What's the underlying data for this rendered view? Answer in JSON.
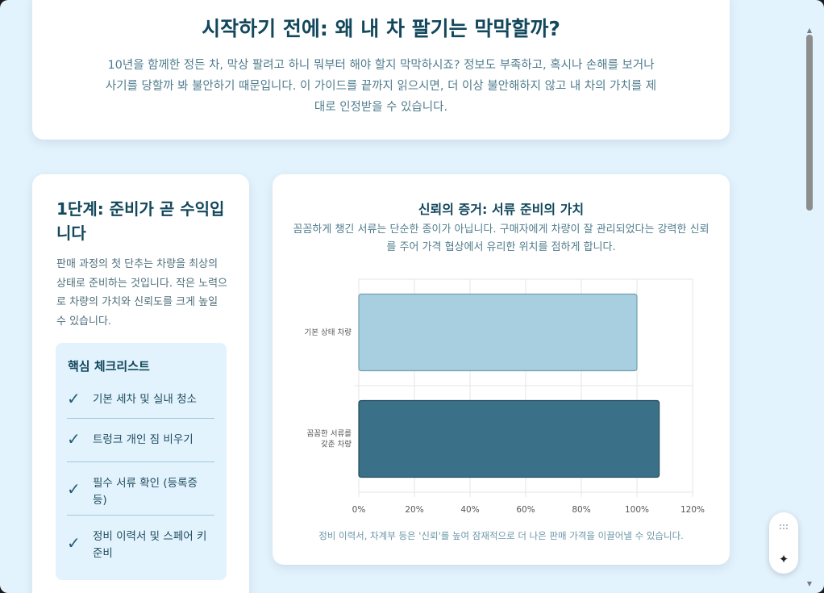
{
  "intro": {
    "title": "시작하기 전에: 왜 내 차 팔기는 막막할까?",
    "text": "10년을 함께한 정든 차, 막상 팔려고 하니 뭐부터 해야 할지 막막하시죠? 정보도 부족하고, 혹시나 손해를 보거나 사기를 당할까 봐 불안하기 때문입니다. 이 가이드를 끝까지 읽으시면, 더 이상 불안해하지 않고 내 차의 가치를 제대로 인정받을 수 있습니다."
  },
  "step1": {
    "title": "1단계: 준비가 곧 수익입니다",
    "text": "판매 과정의 첫 단추는 차량을 최상의 상태로 준비하는 것입니다. 작은 노력으로 차량의 가치와 신뢰도를 크게 높일 수 있습니다.",
    "checklist_title": "핵심 체크리스트",
    "check_mark": "✓",
    "checklist": [
      {
        "label": "기본 세차 및 실내 청소"
      },
      {
        "label": "트렁크 개인 짐 비우기"
      },
      {
        "label": "필수 서류 확인 (등록증 등)"
      },
      {
        "label": "정비 이력서 및 스페어 키 준비"
      }
    ]
  },
  "chart_section": {
    "title": "신뢰의 증거: 서류 준비의 가치",
    "subtitle": "꼼꼼하게 챙긴 서류는 단순한 종이가 아닙니다. 구매자에게 차량이 잘 관리되었다는 강력한 신뢰를 주어 가격 협상에서 유리한 위치를 점하게 합니다.",
    "caption": "정비 이력서, 차계부 등은 '신뢰'를 높여 잠재적으로 더 나은 판매 가격을 이끌어낼 수 있습니다."
  },
  "chart_data": {
    "type": "bar",
    "orientation": "horizontal",
    "categories": [
      [
        "기본 상태 차량"
      ],
      [
        "꼼꼼한 서류를",
        "갖춘 차량"
      ]
    ],
    "values": [
      100,
      108
    ],
    "colors": [
      "#a8cfe0",
      "#3b7089"
    ],
    "xlim": [
      0,
      120
    ],
    "xticks": [
      0,
      20,
      40,
      60,
      80,
      100,
      120
    ],
    "tick_suffix": "%",
    "grid": true
  },
  "widget": {
    "sparkle_icon": "sparkle-icon",
    "sparkle_glyph": "✦"
  }
}
